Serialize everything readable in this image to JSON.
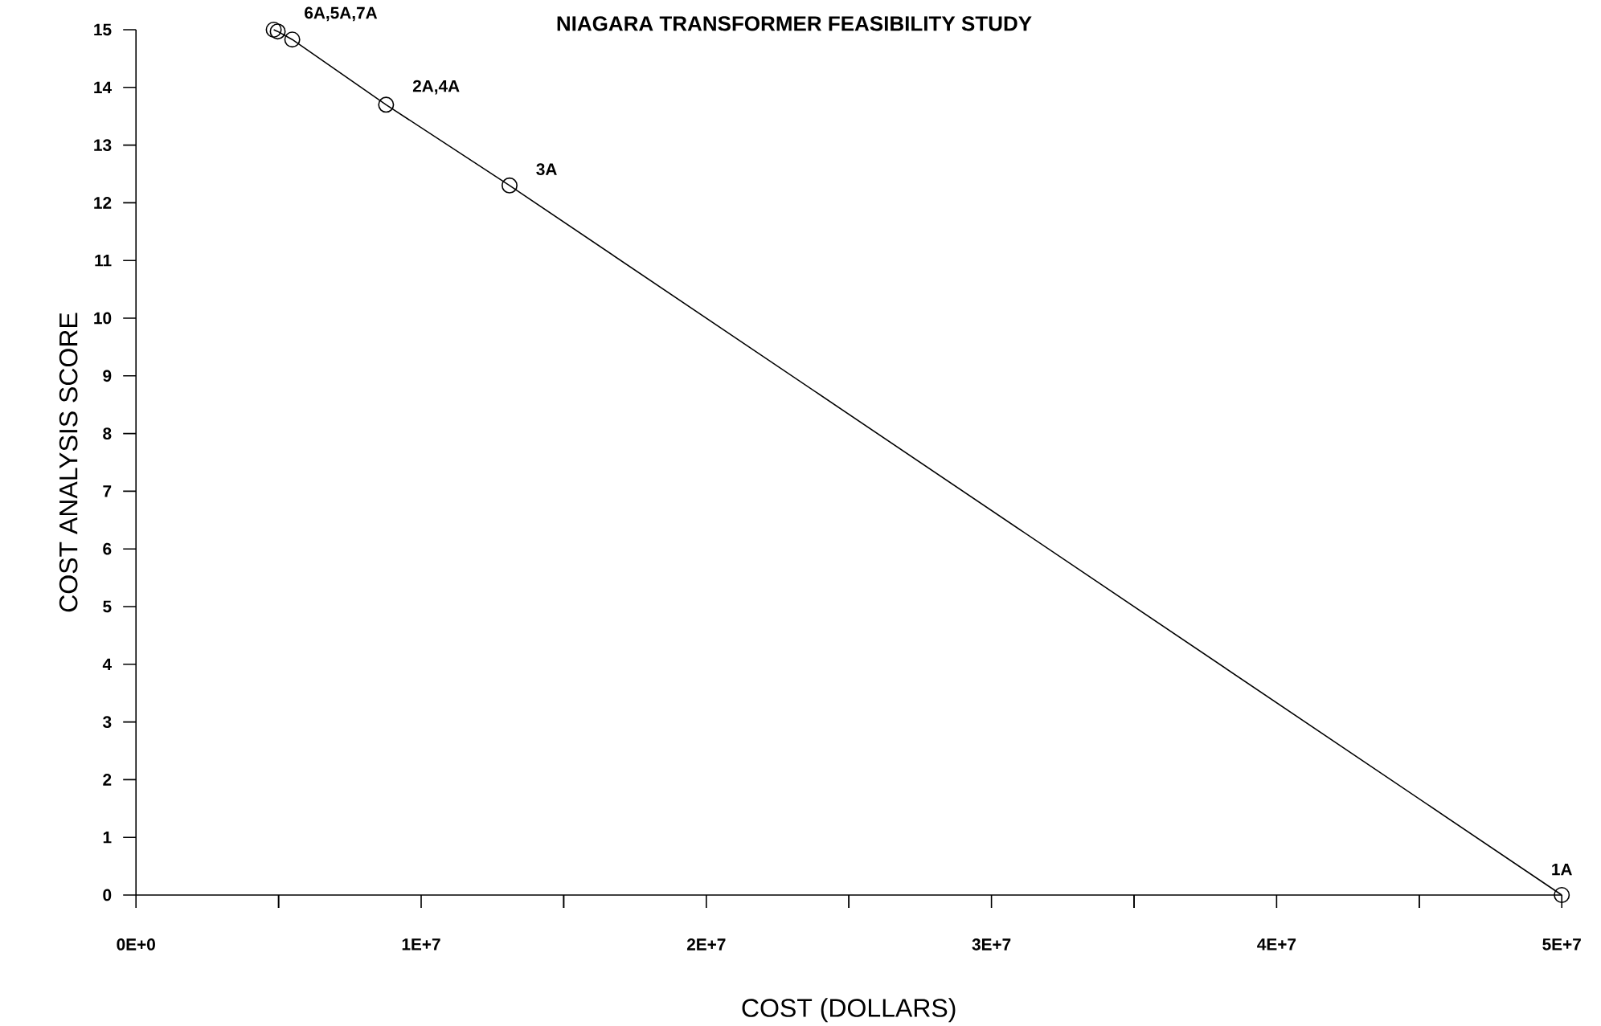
{
  "chart_data": {
    "type": "line",
    "title": "NIAGARA TRANSFORMER FEASIBILITY STUDY",
    "xlabel": "COST (DOLLARS)",
    "ylabel": "COST ANALYSIS SCORE",
    "series": [
      {
        "color": "#000000",
        "x": [
          4830000,
          4970000,
          5480000,
          8770000,
          13100000,
          50000000
        ],
        "values": [
          15.0,
          14.97,
          14.83,
          13.7,
          12.3,
          0
        ]
      }
    ],
    "marker": "circle",
    "line_style": "solid",
    "xlim": [
      0,
      50000000
    ],
    "ylim": [
      0,
      15
    ],
    "xticks": [
      {
        "value": 0,
        "label": "0E+0"
      },
      {
        "value": 5000000,
        "label": null
      },
      {
        "value": 10000000,
        "label": "1E+7"
      },
      {
        "value": 15000000,
        "label": null
      },
      {
        "value": 20000000,
        "label": "2E+7"
      },
      {
        "value": 25000000,
        "label": null
      },
      {
        "value": 30000000,
        "label": "3E+7"
      },
      {
        "value": 35000000,
        "label": null
      },
      {
        "value": 40000000,
        "label": "4E+7"
      },
      {
        "value": 45000000,
        "label": null
      },
      {
        "value": 50000000,
        "label": "5E+7"
      }
    ],
    "yticks": [
      0,
      1,
      2,
      3,
      4,
      5,
      6,
      7,
      8,
      9,
      10,
      11,
      12,
      13,
      14,
      15
    ],
    "annotations": [
      {
        "text": "6A,5A,7A",
        "x": 4970000,
        "y": 14.97
      },
      {
        "text": "2A,4A",
        "x": 8770000,
        "y": 13.7
      },
      {
        "text": "3A",
        "x": 13100000,
        "y": 12.3
      },
      {
        "text": "1A",
        "x": 50000000,
        "y": 0
      }
    ]
  }
}
